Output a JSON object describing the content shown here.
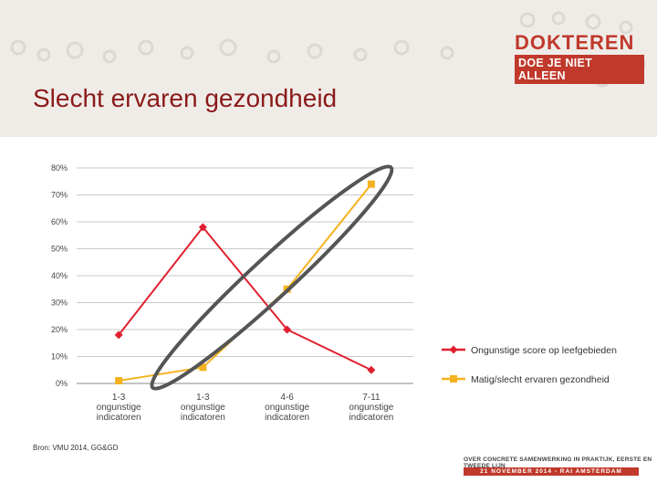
{
  "slide": {
    "title": "Slecht ervaren gezondheid",
    "source": "Bron: VMU 2014, GG&GD"
  },
  "logo": {
    "line1": "DOKTEREN",
    "line2": "DOE JE NIET ALLEEN"
  },
  "footer": {
    "line1": "OVER CONCRETE SAMENWERKING IN PRAKTIJK, EERSTE EN TWEEDE LIJN",
    "line2": "21 NOVEMBER 2014 - RAI AMSTERDAM"
  },
  "colors": {
    "series1": "#e02030",
    "series2": "#f5b21e",
    "title": "#8b1a1a",
    "accent": "#c0392b"
  },
  "chart_data": {
    "type": "line",
    "categories": [
      [
        "1-3",
        "ongunstige",
        "indicatoren"
      ],
      [
        "1-3",
        "ongunstige",
        "indicatoren"
      ],
      [
        "4-6",
        "ongunstige",
        "indicatoren"
      ],
      [
        "7-11",
        "ongunstige",
        "indicatoren"
      ]
    ],
    "series": [
      {
        "name": "Ongunstige score op leefgebieden",
        "values": [
          18,
          58,
          20,
          5
        ],
        "marker": "diamond",
        "color": "#e02030"
      },
      {
        "name": "Matig/slecht ervaren gezondheid",
        "values": [
          1,
          6,
          35,
          74
        ],
        "marker": "square",
        "color": "#f5b21e"
      }
    ],
    "y_ticks": [
      0,
      10,
      20,
      30,
      40,
      50,
      60,
      70,
      80
    ],
    "y_tick_labels": [
      "0%",
      "10%",
      "20%",
      "30%",
      "40%",
      "50%",
      "60%",
      "70%",
      "80%"
    ],
    "ylim": [
      0,
      80
    ],
    "grid": true,
    "legend_position": "right",
    "annotation": "ellipse around Matig/slecht ervaren gezondheid series"
  }
}
